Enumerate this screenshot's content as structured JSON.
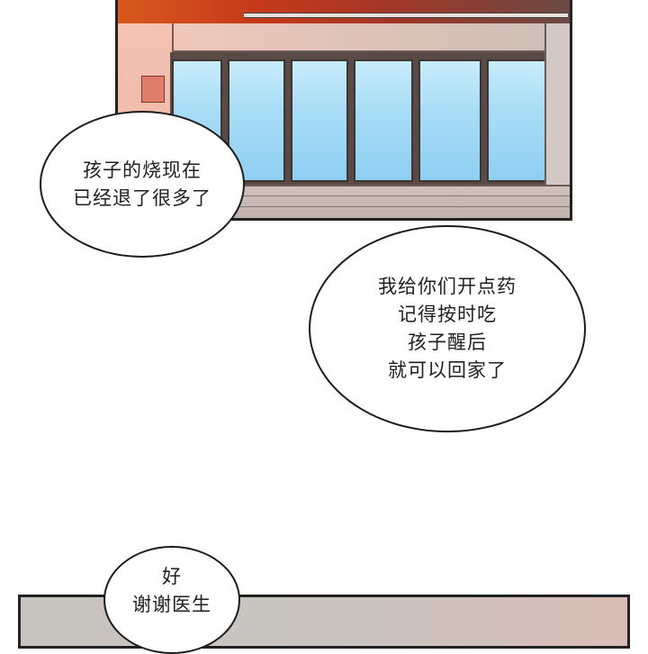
{
  "panels": {
    "top_scene": "hospital-corridor-window",
    "bottom_scene": "partial-panel"
  },
  "bubbles": [
    {
      "lines": [
        "孩子的烧现在",
        "已经退了很多了"
      ]
    },
    {
      "lines": [
        "我给你们开点药",
        "记得按时吃",
        "孩子醒后",
        "就可以回家了"
      ]
    },
    {
      "lines": [
        "好",
        "谢谢医生"
      ]
    }
  ]
}
